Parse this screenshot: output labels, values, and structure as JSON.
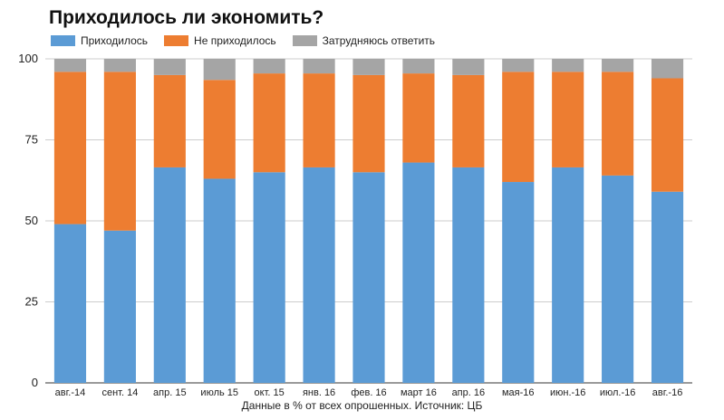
{
  "chart_data": {
    "type": "bar",
    "stacked": true,
    "title": "Приходилось ли экономить?",
    "caption": "Данные в % от всех опрошенных. Источник: ЦБ",
    "categories": [
      "авг.-14",
      "сент. 14",
      "апр. 15",
      "июль 15",
      "окт. 15",
      "янв. 16",
      "фев. 16",
      "март 16",
      "апр. 16",
      "мая-16",
      "июн.-16",
      "июл.-16",
      "авг.-16"
    ],
    "series": [
      {
        "name": "Приходилось",
        "color": "#5b9bd5",
        "values": [
          49,
          47,
          66.5,
          63,
          65,
          66.5,
          65,
          68,
          66.5,
          62,
          66.5,
          64,
          59
        ]
      },
      {
        "name": "Не приходилось",
        "color": "#ed7d31",
        "values": [
          47,
          49,
          28.5,
          30.5,
          30.5,
          29,
          30,
          27.5,
          28.5,
          34,
          29.5,
          32,
          35
        ]
      },
      {
        "name": "Затрудняюсь ответить",
        "color": "#a5a5a5",
        "values": [
          4,
          4,
          5,
          6.5,
          4.5,
          4.5,
          5,
          4.5,
          5,
          4,
          4,
          4,
          6
        ]
      }
    ],
    "ylim": [
      0,
      100
    ],
    "yticks": [
      0,
      25,
      50,
      75,
      100
    ],
    "grid": true,
    "legend_position": "top-left"
  }
}
